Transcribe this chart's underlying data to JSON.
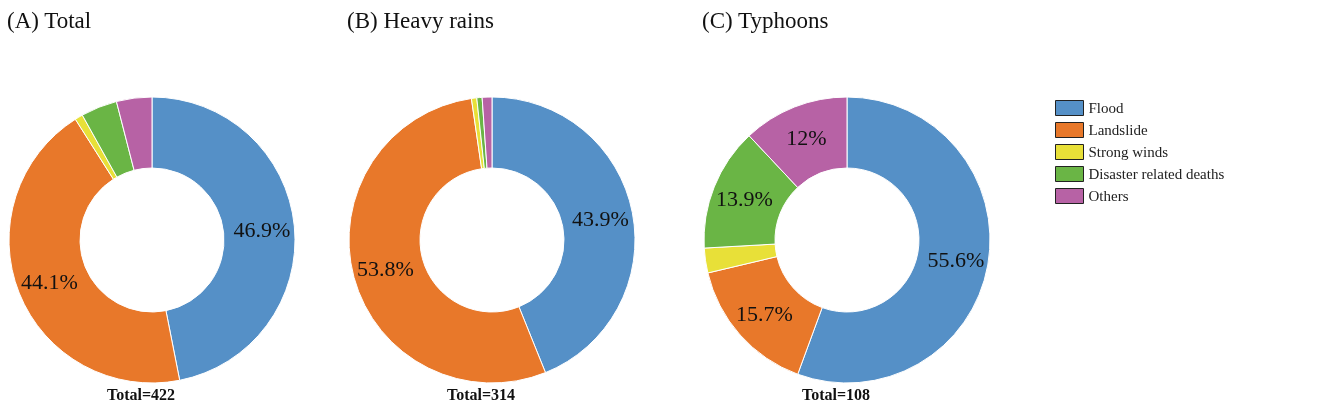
{
  "chart_data": [
    {
      "type": "donut",
      "title": "(A) Total",
      "categories": [
        null,
        null,
        null,
        null,
        null
      ],
      "values": [
        46.9,
        44.1,
        0.9,
        4.1,
        4.0
      ],
      "value_labels": [
        "46.9%",
        "44.1%",
        null,
        null,
        null
      ],
      "colors": [
        "#5590c7",
        "#e8782a",
        "#e8e038",
        "#6ab545",
        "#b762a5"
      ],
      "annotations": [
        "Total=422"
      ]
    },
    {
      "type": "donut",
      "title": "(B) Heavy rains",
      "categories": [
        null,
        null,
        null,
        null,
        null
      ],
      "values": [
        43.9,
        53.8,
        0.6,
        0.6,
        1.1
      ],
      "value_labels": [
        "43.9%",
        "53.8%",
        null,
        null,
        null
      ],
      "colors": [
        "#5590c7",
        "#e8782a",
        "#e8e038",
        "#6ab545",
        "#b762a5"
      ],
      "annotations": [
        "Total=314"
      ]
    },
    {
      "type": "donut",
      "title": "(C) Typhoons",
      "categories": [
        "Flood",
        "Landslide",
        "Strong winds",
        "Disaster related deaths",
        "Others"
      ],
      "values": [
        55.6,
        15.7,
        2.8,
        13.9,
        12
      ],
      "value_labels": [
        "55.6%",
        "15.7%",
        null,
        "13.9%",
        "12%"
      ],
      "colors": [
        "#5590c7",
        "#e8782a",
        "#e8e038",
        "#6ab545",
        "#b762a5"
      ],
      "annotations": [
        "Total=108"
      ],
      "legend": "right"
    }
  ]
}
